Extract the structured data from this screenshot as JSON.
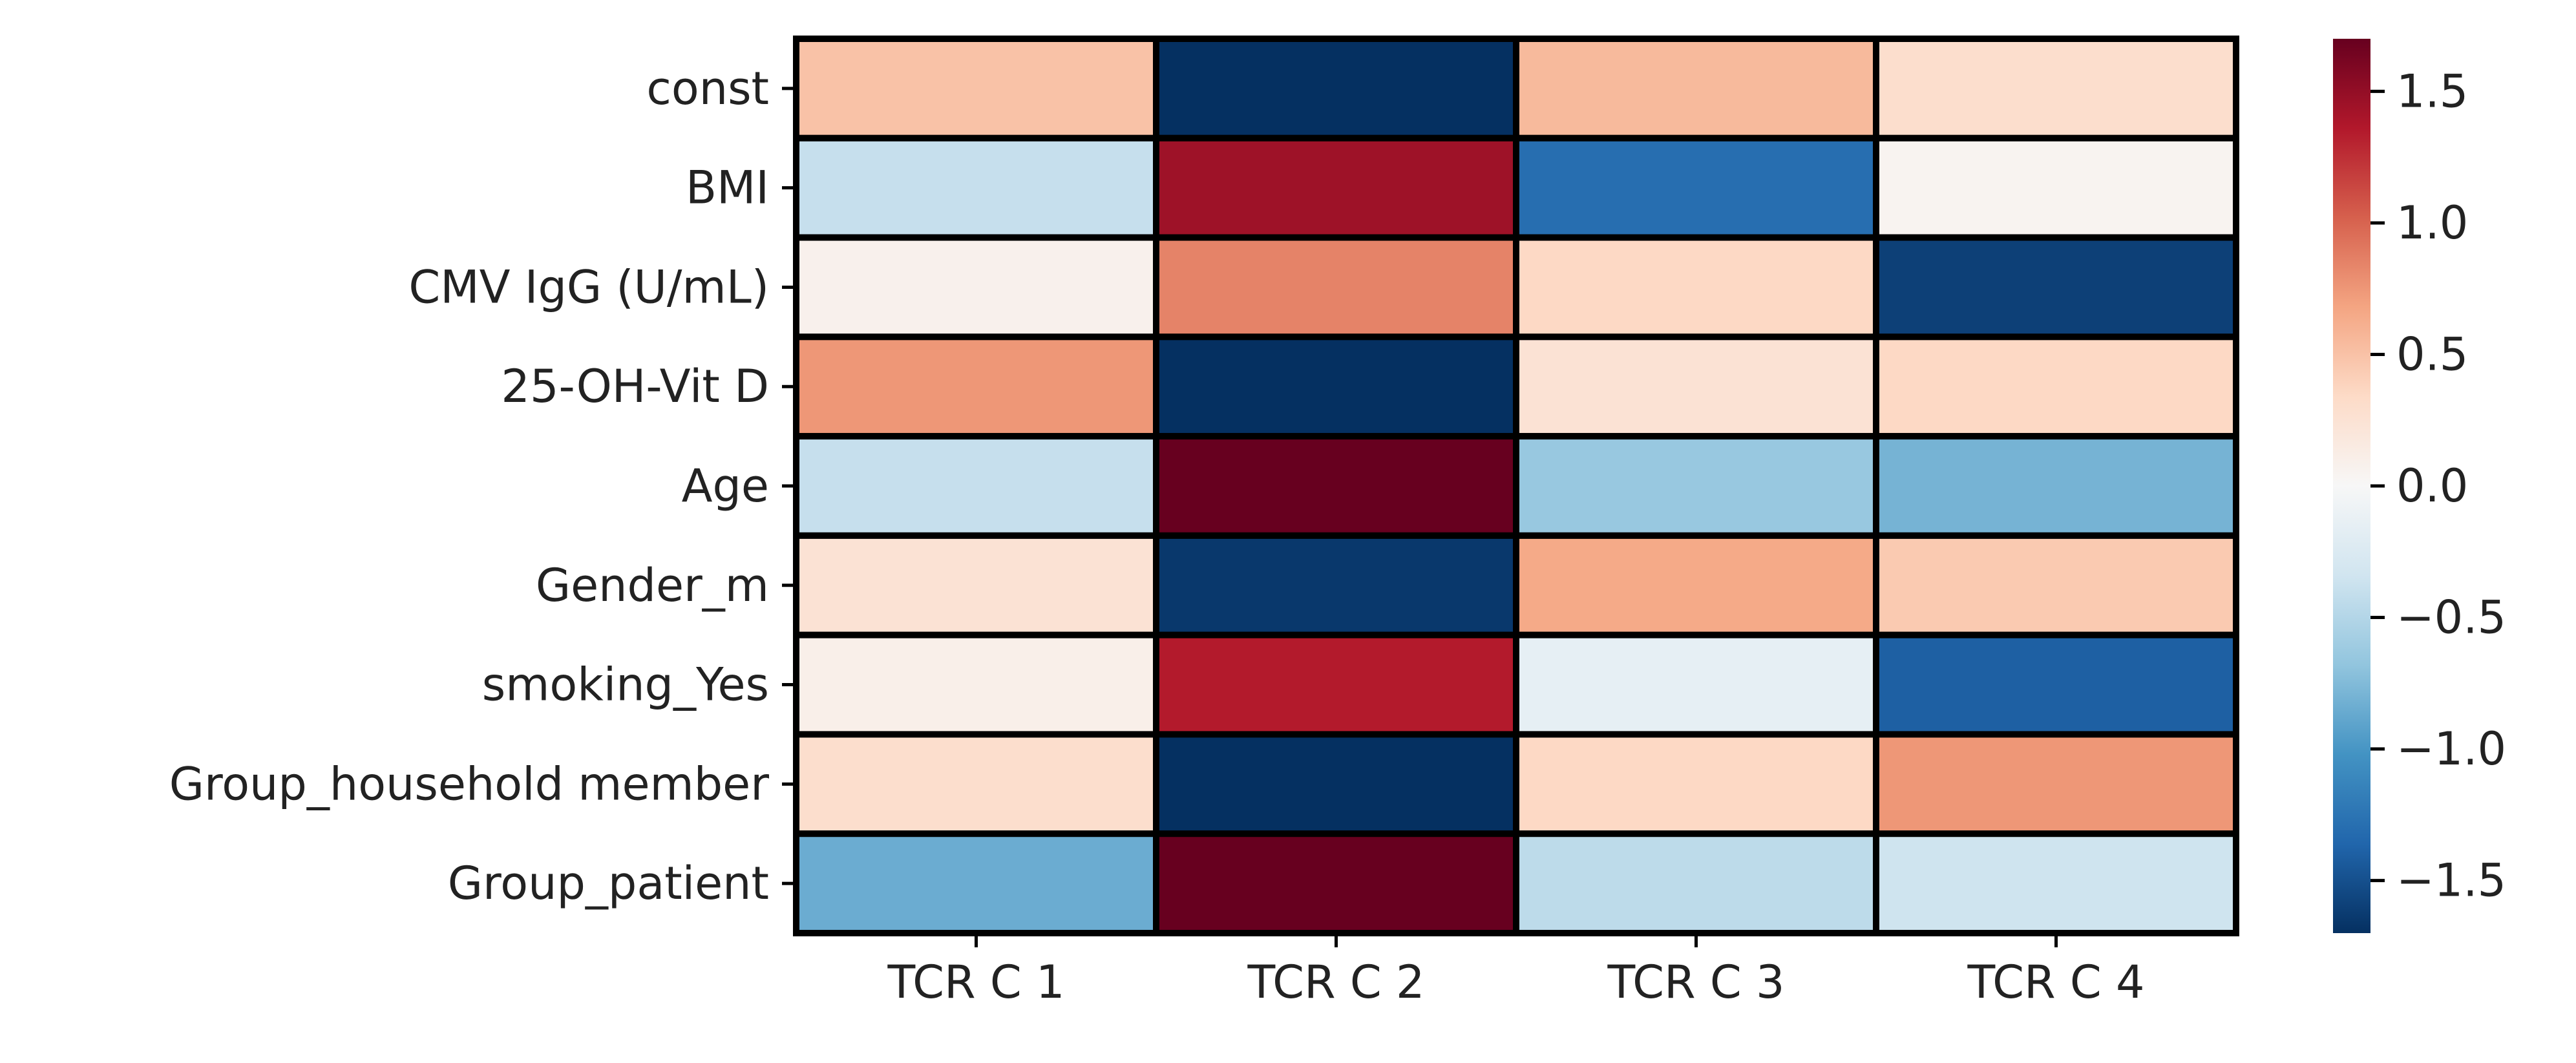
{
  "chart_data": {
    "type": "heatmap",
    "title": "",
    "xlabel": "",
    "ylabel": "",
    "columns": [
      "TCR C 1",
      "TCR C 2",
      "TCR C 3",
      "TCR C 4"
    ],
    "rows": [
      "const",
      "BMI",
      "CMV IgG (U/mL)",
      "25-OH-Vit D",
      "Age",
      "Gender_m",
      "smoking_Yes",
      "Group_household member",
      "Group_patient"
    ],
    "values": [
      [
        0.5,
        -1.7,
        0.55,
        0.3
      ],
      [
        -0.4,
        1.45,
        -1.3,
        0.05
      ],
      [
        0.08,
        0.85,
        0.35,
        -1.6
      ],
      [
        0.75,
        -1.7,
        0.25,
        0.35
      ],
      [
        -0.4,
        1.7,
        -0.65,
        -0.8
      ],
      [
        0.25,
        -1.65,
        0.65,
        0.45
      ],
      [
        0.1,
        1.35,
        -0.15,
        -1.4
      ],
      [
        0.3,
        -1.7,
        0.35,
        0.75
      ],
      [
        -0.85,
        1.7,
        -0.45,
        -0.35
      ]
    ],
    "colorbar": {
      "min": -1.7,
      "max": 1.7,
      "colormap": "RdBu_r",
      "ticks": [
        1.5,
        1.0,
        0.5,
        0.0,
        -0.5,
        -1.0,
        -1.5
      ],
      "tick_labels": [
        "1.5",
        "1.0",
        "0.5",
        "0.0",
        "−0.5",
        "−1.0",
        "−1.5"
      ]
    },
    "grid": false,
    "cell_border_color": "#000000"
  }
}
